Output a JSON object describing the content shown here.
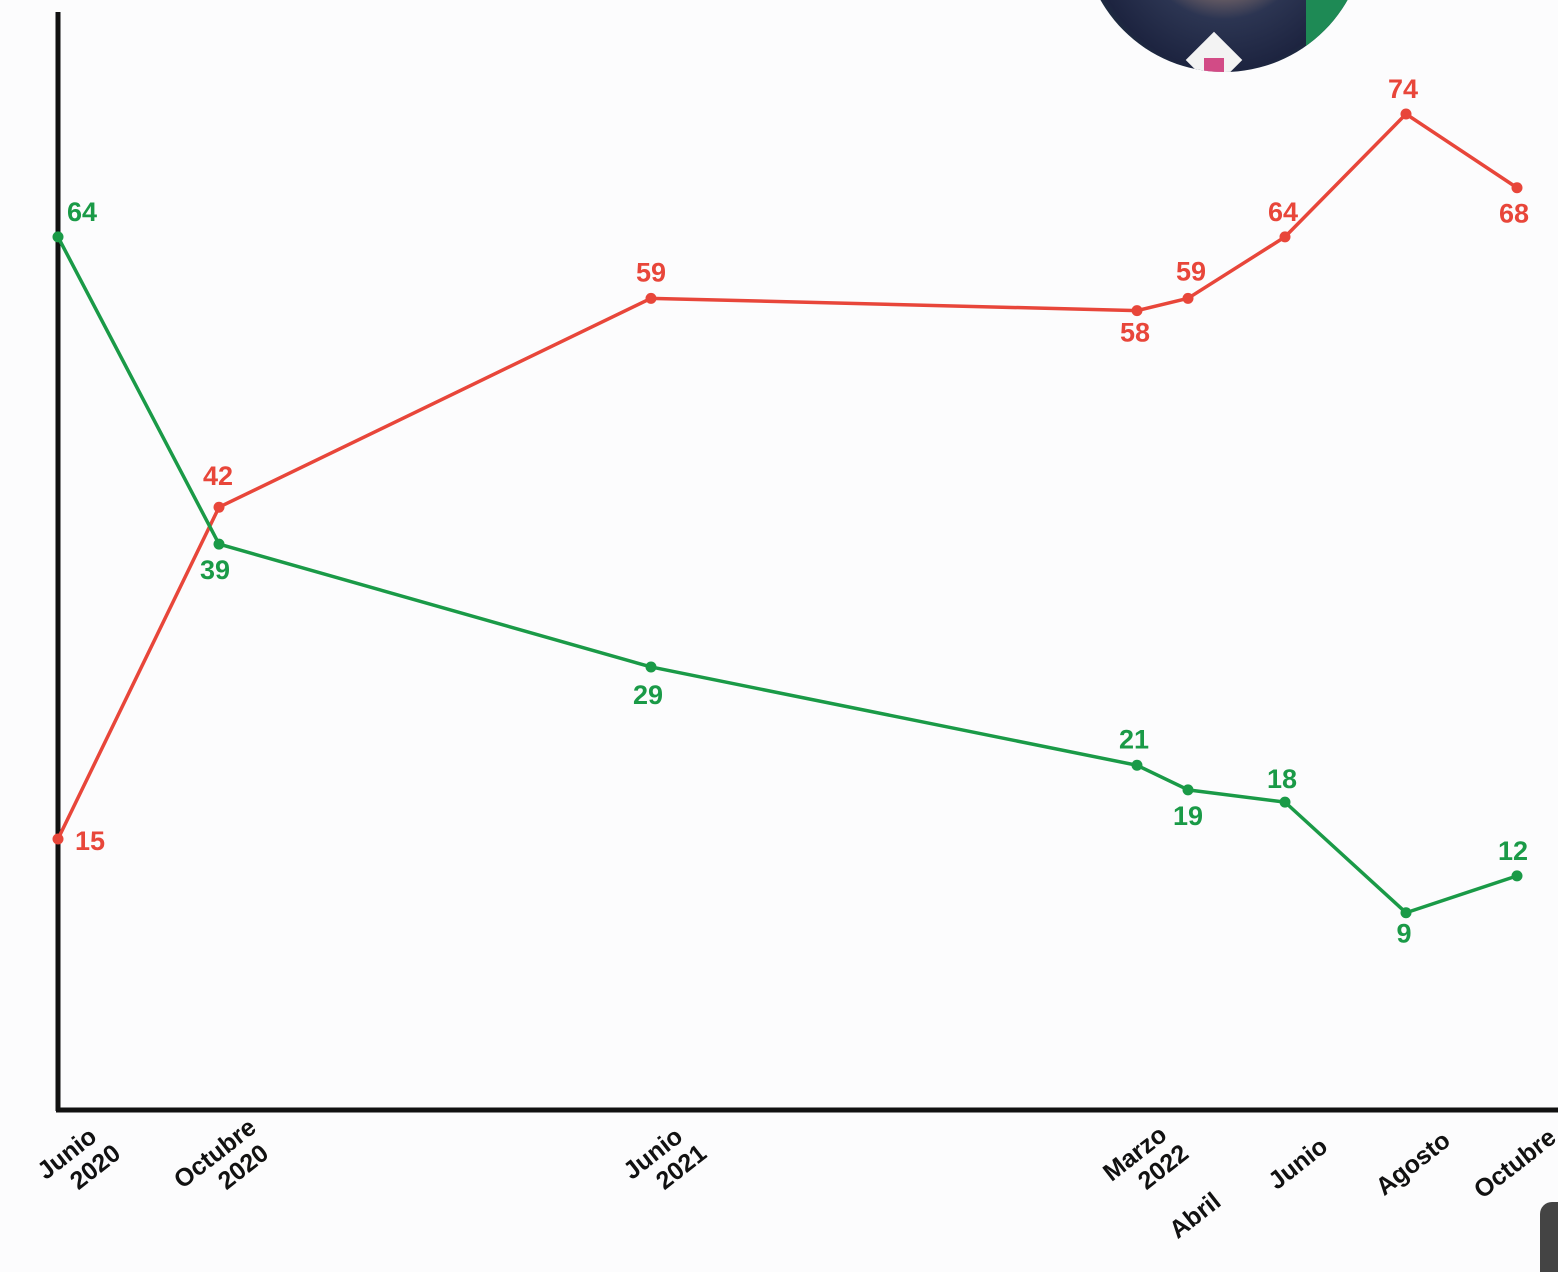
{
  "chart_data": {
    "type": "line",
    "x_labels": [
      [
        "Junio",
        "2020"
      ],
      [
        "Octubre",
        "2020"
      ],
      [
        "Junio",
        "2021"
      ],
      [
        "Marzo",
        "2022"
      ],
      [
        "Abril"
      ],
      [
        "Junio"
      ],
      [
        "Agosto"
      ],
      [
        "Octubre"
      ]
    ],
    "series": [
      {
        "color": "#e8463a",
        "values": [
          15,
          42,
          59,
          58,
          59,
          64,
          74,
          68
        ]
      },
      {
        "color": "#1a9a47",
        "values": [
          64,
          39,
          29,
          21,
          19,
          18,
          9,
          12
        ]
      }
    ],
    "grid": false,
    "legend": "none"
  },
  "decor": {
    "avatar": "portrait-photo",
    "axis_color": "#111111"
  }
}
